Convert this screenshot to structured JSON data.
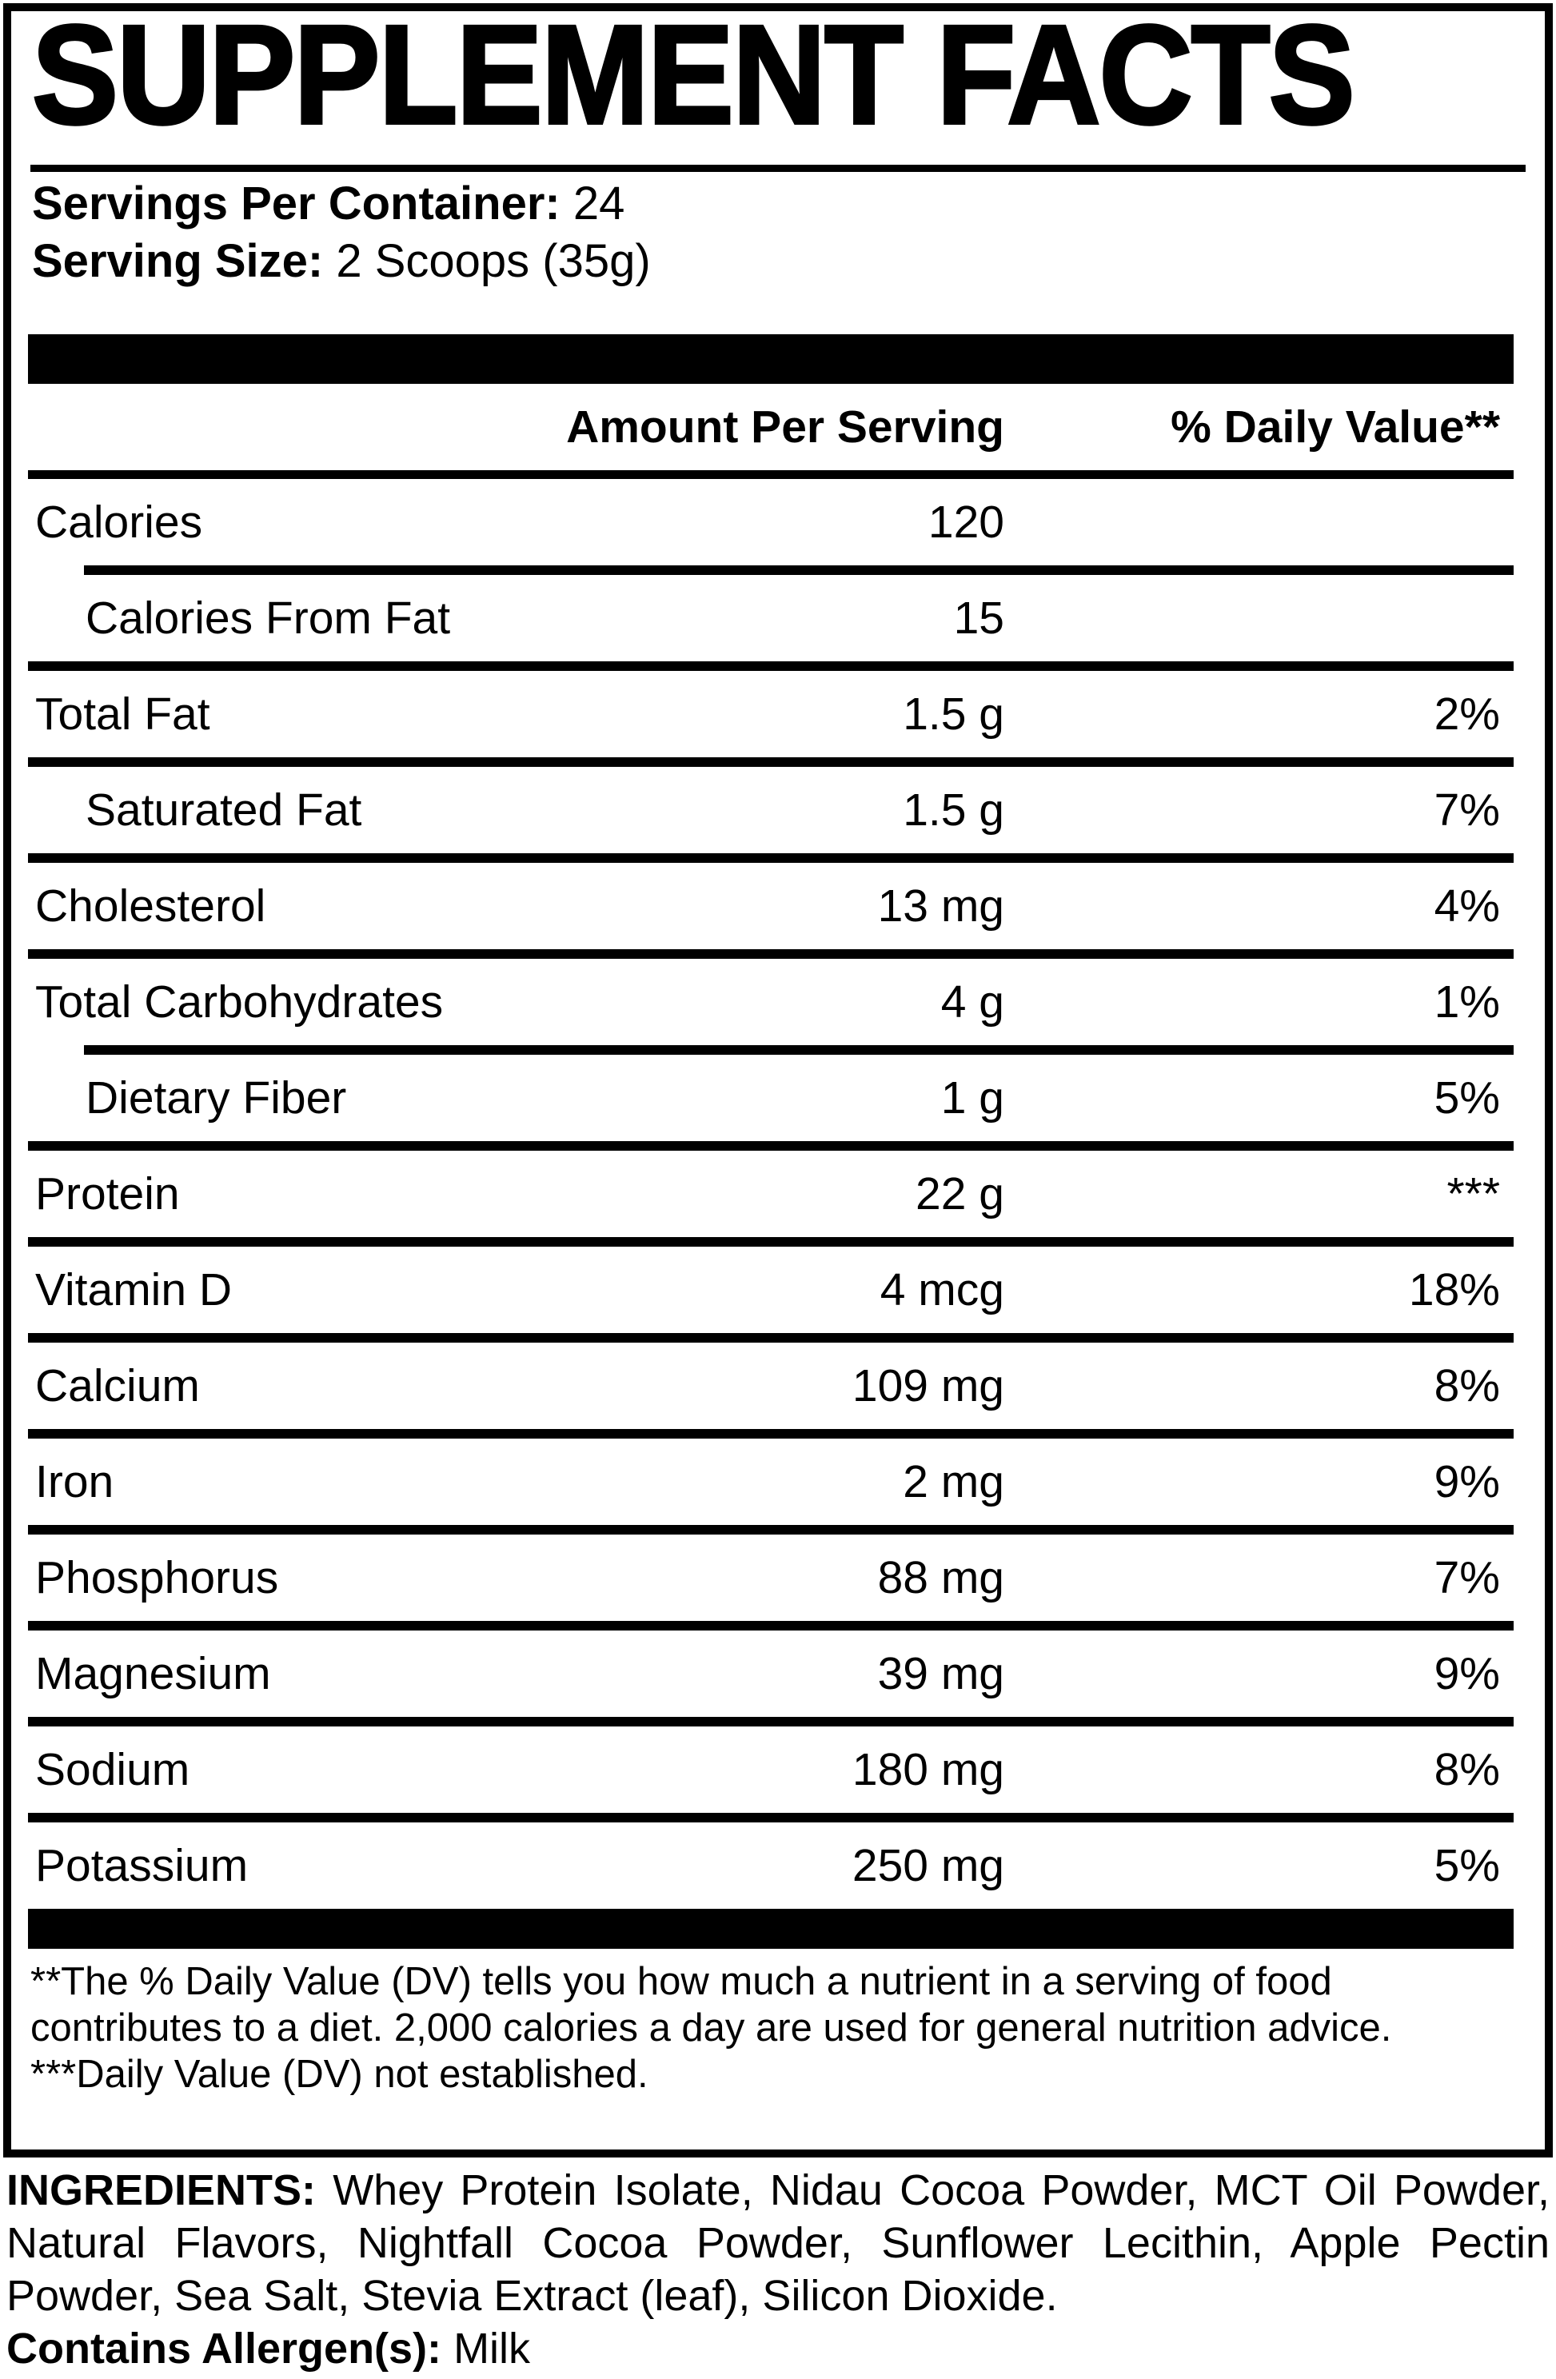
{
  "panel": {
    "title": "SUPPLEMENT FACTS",
    "servings_per_container": {
      "label": "Servings Per Container:",
      "value": "24"
    },
    "serving_size": {
      "label": "Serving Size:",
      "value": "2 Scoops (35g)"
    },
    "table": {
      "header": {
        "amount": "Amount Per Serving",
        "dv": "% Daily Value**"
      },
      "rows": [
        {
          "label": "Calories",
          "amount": "120",
          "dv": "",
          "indent": false,
          "rule_above": "none"
        },
        {
          "label": "Calories From Fat",
          "amount": "15",
          "dv": "",
          "indent": true,
          "rule_above": "indent"
        },
        {
          "label": "Total Fat",
          "amount": "1.5 g",
          "dv": "2%",
          "indent": false,
          "rule_above": "full"
        },
        {
          "label": "Saturated Fat",
          "amount": "1.5 g",
          "dv": "7%",
          "indent": true,
          "rule_above": "full"
        },
        {
          "label": "Cholesterol",
          "amount": "13 mg",
          "dv": "4%",
          "indent": false,
          "rule_above": "full"
        },
        {
          "label": "Total Carbohydrates",
          "amount": "4 g",
          "dv": "1%",
          "indent": false,
          "rule_above": "full"
        },
        {
          "label": "Dietary Fiber",
          "amount": "1 g",
          "dv": "5%",
          "indent": true,
          "rule_above": "indent"
        },
        {
          "label": "Protein",
          "amount": "22 g",
          "dv": "***",
          "indent": false,
          "rule_above": "full"
        },
        {
          "label": "Vitamin D",
          "amount": "4 mcg",
          "dv": "18%",
          "indent": false,
          "rule_above": "full"
        },
        {
          "label": "Calcium",
          "amount": "109 mg",
          "dv": "8%",
          "indent": false,
          "rule_above": "full"
        },
        {
          "label": "Iron",
          "amount": "2 mg",
          "dv": "9%",
          "indent": false,
          "rule_above": "full"
        },
        {
          "label": "Phosphorus",
          "amount": "88 mg",
          "dv": "7%",
          "indent": false,
          "rule_above": "full"
        },
        {
          "label": "Magnesium",
          "amount": "39 mg",
          "dv": "9%",
          "indent": false,
          "rule_above": "full"
        },
        {
          "label": "Sodium",
          "amount": "180 mg",
          "dv": "8%",
          "indent": false,
          "rule_above": "full"
        },
        {
          "label": "Potassium",
          "amount": "250 mg",
          "dv": "5%",
          "indent": false,
          "rule_above": "full"
        }
      ]
    },
    "footnotes": [
      "**The % Daily Value (DV) tells you how much a nutrient in a serving of food contributes to a diet. 2,000 calories a day are used for general nutrition advice.",
      "***Daily Value (DV) not established."
    ]
  },
  "ingredients": {
    "label": "INGREDIENTS:",
    "text": "Whey Protein Isolate, Nidau Cocoa Powder, MCT Oil Powder, Natural Flavors, Nightfall Cocoa Powder, Sunflower Lecithin, Apple Pectin Powder, Sea Salt, Stevia Extract (leaf), Silicon Dioxide.",
    "allergen_label": "Contains Allergen(s):",
    "allergen_value": "Milk"
  },
  "colors": {
    "ink": "#000000",
    "paper": "#ffffff"
  }
}
